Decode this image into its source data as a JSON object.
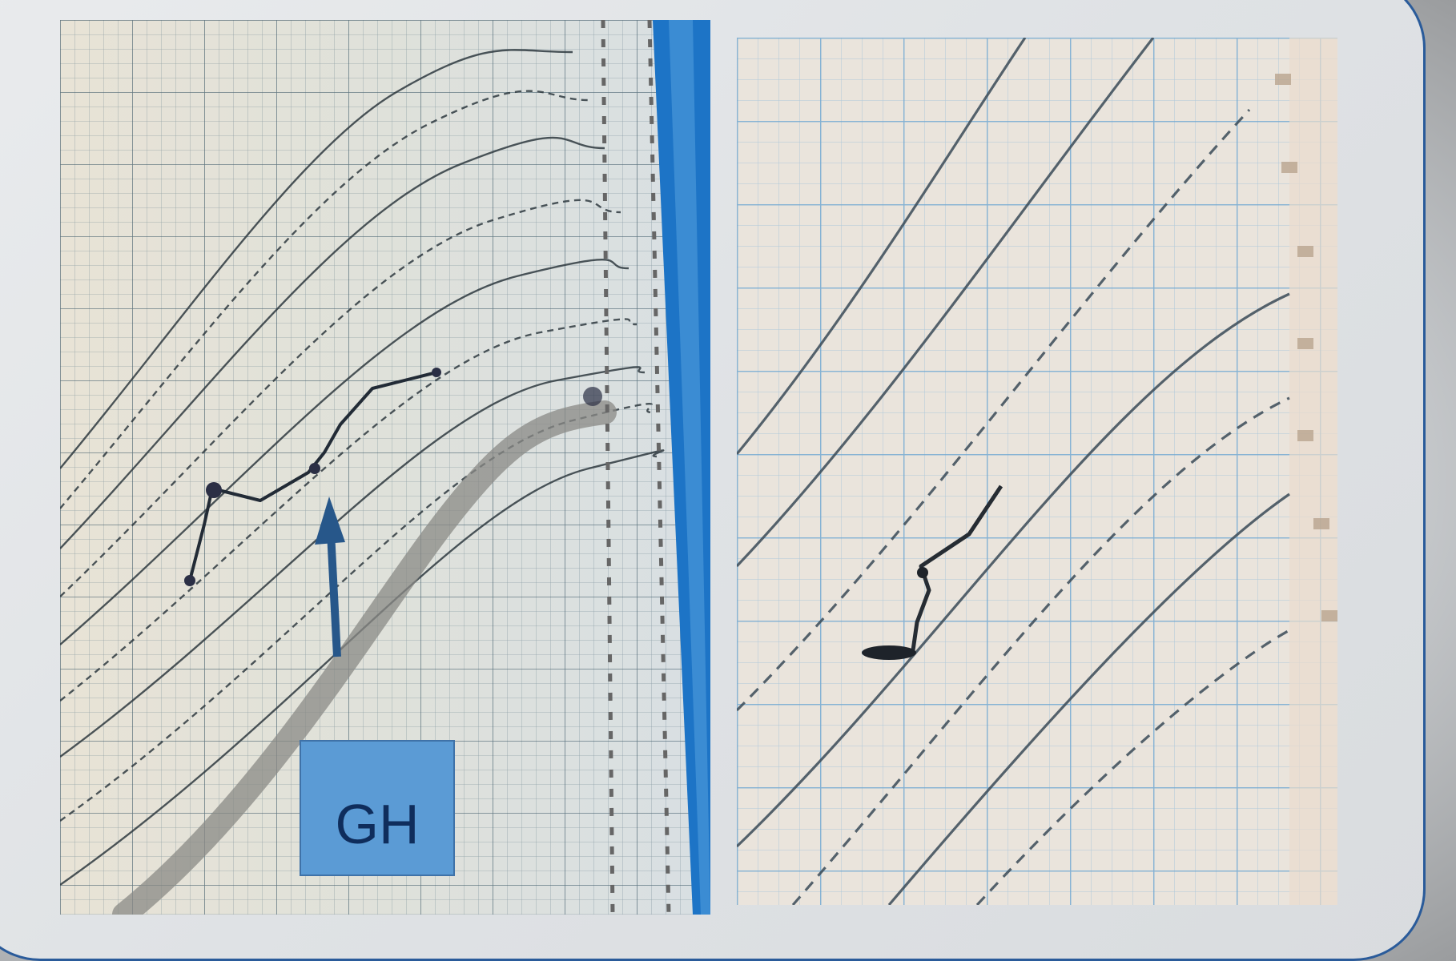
{
  "colors": {
    "frame_border": "#2a5b9a",
    "left_grid": "#3f5f72",
    "right_grid": "#6fa6cf",
    "curve": "#2f3a40",
    "highlight_band": "#8a8a86",
    "arrow": "#27578a",
    "blue_bar": "#1d74c6",
    "label_bg": "#5b9bd5",
    "label_text": "#0f2d5c"
  },
  "left_chart": {
    "blue_bar_icon": "vertical-blue-stripe"
  },
  "right_chart": {},
  "annotation": {
    "label": "GH",
    "arrow_icon": "up-arrow-icon"
  }
}
